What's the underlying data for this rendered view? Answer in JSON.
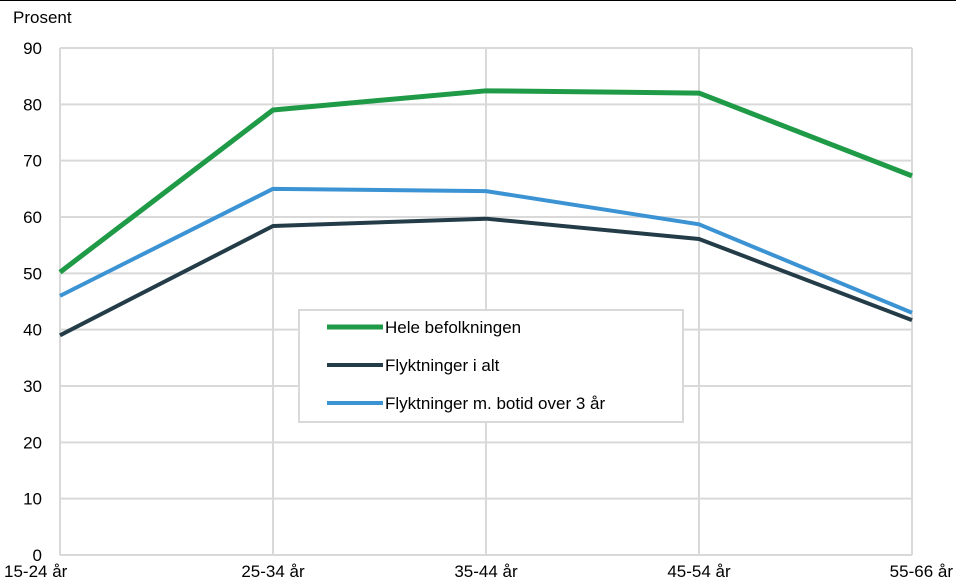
{
  "chart_data": {
    "type": "line",
    "title": "",
    "ylabel": "Prosent",
    "xlabel": "",
    "categories": [
      "15-24 år",
      "25-34 år",
      "35-44 år",
      "45-54 år",
      "55-66 år"
    ],
    "ylim": [
      0,
      90
    ],
    "yticks": [
      0,
      10,
      20,
      30,
      40,
      50,
      60,
      70,
      80,
      90
    ],
    "grid": true,
    "legend": "center",
    "series": [
      {
        "name": "Hele befolkningen",
        "color": "#1f9a47",
        "values": [
          50.2,
          79.0,
          82.4,
          82.0,
          67.3
        ]
      },
      {
        "name": "Flyktninger i alt",
        "color": "#233c48",
        "values": [
          39.0,
          58.4,
          59.7,
          56.1,
          41.7
        ]
      },
      {
        "name": "Flyktninger m. botid over 3 år",
        "color": "#3b93d3",
        "values": [
          46.0,
          65.0,
          64.6,
          58.7,
          43.0
        ]
      }
    ]
  }
}
